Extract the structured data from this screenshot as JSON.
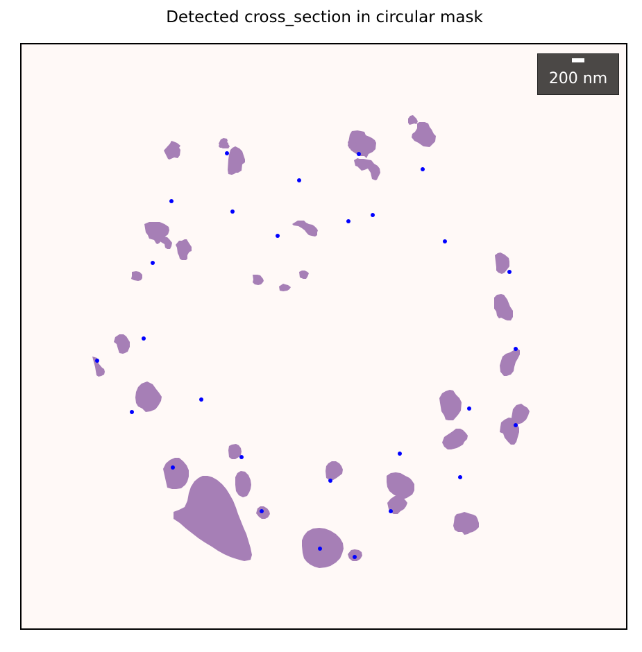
{
  "figure": {
    "title": "Detected cross_section in circular mask"
  },
  "scalebar": {
    "label": "200 nm"
  },
  "colors": {
    "region_fill": "#a67fb6",
    "centroid": "#0000ff",
    "background": "#fff9f7",
    "frame": "#000000",
    "scalebar_bg": "#4b4846",
    "scalebar_text": "#ffffff"
  }
}
